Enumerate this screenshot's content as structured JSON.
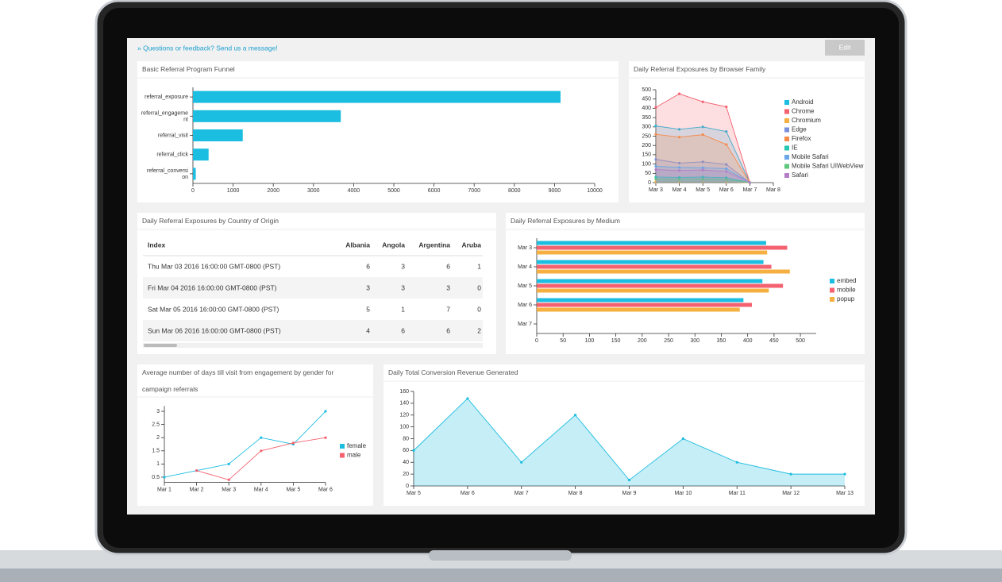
{
  "header": {
    "feedback": "» Questions or feedback? Send us a message!",
    "edit": "Edit"
  },
  "chart_data": [
    {
      "type": "hbar",
      "title": "Basic Referral Program Funnel",
      "categories": [
        "referral_exposure",
        "referral_engagement",
        "referral_visit",
        "referral_click",
        "referral_conversion"
      ],
      "values": [
        9150,
        3680,
        1240,
        390,
        70
      ],
      "color": "#1bbde0",
      "xlim": [
        0,
        10000
      ],
      "xticks": [
        0,
        1000,
        2000,
        3000,
        4000,
        5000,
        6000,
        7000,
        8000,
        9000,
        10000
      ]
    },
    {
      "type": "area",
      "title": "Daily Referral Exposures by Browser Family",
      "categories": [
        "Mar 3",
        "Mar 4",
        "Mar 5",
        "Mar 6",
        "Mar 7",
        "Mar 8"
      ],
      "series": [
        {
          "name": "Android",
          "color": "#1bbde0",
          "values": [
            305,
            287,
            300,
            275,
            0,
            null
          ]
        },
        {
          "name": "Chrome",
          "color": "#f4616f",
          "values": [
            405,
            478,
            435,
            408,
            0,
            null
          ]
        },
        {
          "name": "Chromium",
          "color": "#f5b041",
          "values": [
            5,
            4,
            5,
            4,
            0,
            null
          ]
        },
        {
          "name": "Edge",
          "color": "#7b8fdb",
          "values": [
            125,
            105,
            112,
            98,
            0,
            null
          ]
        },
        {
          "name": "Firefox",
          "color": "#f58a4b",
          "values": [
            260,
            245,
            258,
            205,
            0,
            null
          ]
        },
        {
          "name": "IE",
          "color": "#26c6b0",
          "values": [
            30,
            28,
            30,
            26,
            0,
            null
          ]
        },
        {
          "name": "Mobile Safari",
          "color": "#6aa6e8",
          "values": [
            88,
            82,
            80,
            75,
            0,
            null
          ]
        },
        {
          "name": "Mobile Safari UIWebView",
          "color": "#5dc77e",
          "values": [
            20,
            18,
            19,
            17,
            0,
            null
          ]
        },
        {
          "name": "Safari",
          "color": "#b57fc8",
          "values": [
            70,
            65,
            68,
            60,
            0,
            null
          ]
        }
      ],
      "ylim": [
        0,
        500
      ],
      "yticks": [
        0,
        50,
        100,
        150,
        200,
        250,
        300,
        350,
        400,
        450,
        500
      ]
    },
    {
      "type": "grouped-hbar",
      "title": "Daily Referral Exposures by Medium",
      "categories": [
        "Mar 3",
        "Mar 4",
        "Mar 5",
        "Mar 6",
        "Mar 7"
      ],
      "series": [
        {
          "name": "embed",
          "color": "#1bbde0",
          "values": [
            435,
            430,
            428,
            392,
            null
          ]
        },
        {
          "name": "mobile",
          "color": "#f4616f",
          "values": [
            475,
            445,
            467,
            408,
            null
          ]
        },
        {
          "name": "popup",
          "color": "#f5b041",
          "values": [
            437,
            480,
            440,
            385,
            null
          ]
        }
      ],
      "xlim": [
        0,
        530
      ],
      "xticks": [
        0,
        50,
        100,
        150,
        200,
        250,
        300,
        350,
        400,
        450,
        500
      ]
    },
    {
      "type": "line",
      "title": "Average number of days till visit from engagement by gender for campaign referrals",
      "categories": [
        "Mar 1",
        "Mar 2",
        "Mar 3",
        "Mar 4",
        "Mar 5",
        "Mar 6"
      ],
      "series": [
        {
          "name": "female",
          "color": "#1bbde0",
          "values": [
            0.5,
            0.75,
            1,
            2,
            1.75,
            3
          ]
        },
        {
          "name": "male",
          "color": "#f4616f",
          "values": [
            null,
            0.75,
            0.4,
            1.5,
            1.8,
            2
          ]
        }
      ],
      "ylim": [
        0.3,
        3.2
      ],
      "yticks": [
        0.5,
        1,
        1.5,
        2,
        2.5,
        3
      ]
    },
    {
      "type": "area",
      "title": "Daily Total Conversion Revenue Generated",
      "categories": [
        "Mar 5",
        "Mar 6",
        "Mar 7",
        "Mar 8",
        "Mar 9",
        "Mar 10",
        "Mar 11",
        "Mar 12",
        "Mar 13"
      ],
      "series": [
        {
          "name": "revenue",
          "color": "#1bbde0",
          "values": [
            60,
            148,
            40,
            120,
            10,
            80,
            40,
            20,
            20
          ]
        }
      ],
      "ylim": [
        0,
        160
      ],
      "yticks": [
        0,
        20,
        40,
        60,
        80,
        100,
        120,
        140,
        160
      ]
    }
  ],
  "table": {
    "title": "Daily Referral Exposures by Country of Origin",
    "columns": [
      "Index",
      "Albania",
      "Angola",
      "Argentina",
      "Aruba"
    ],
    "rows": [
      [
        "Thu Mar 03 2016 16:00:00 GMT-0800 (PST)",
        6,
        3,
        6,
        1
      ],
      [
        "Fri Mar 04 2016 16:00:00 GMT-0800 (PST)",
        3,
        3,
        3,
        0
      ],
      [
        "Sat Mar 05 2016 16:00:00 GMT-0800 (PST)",
        5,
        1,
        7,
        0
      ],
      [
        "Sun Mar 06 2016 16:00:00 GMT-0800 (PST)",
        4,
        6,
        6,
        2
      ]
    ]
  }
}
